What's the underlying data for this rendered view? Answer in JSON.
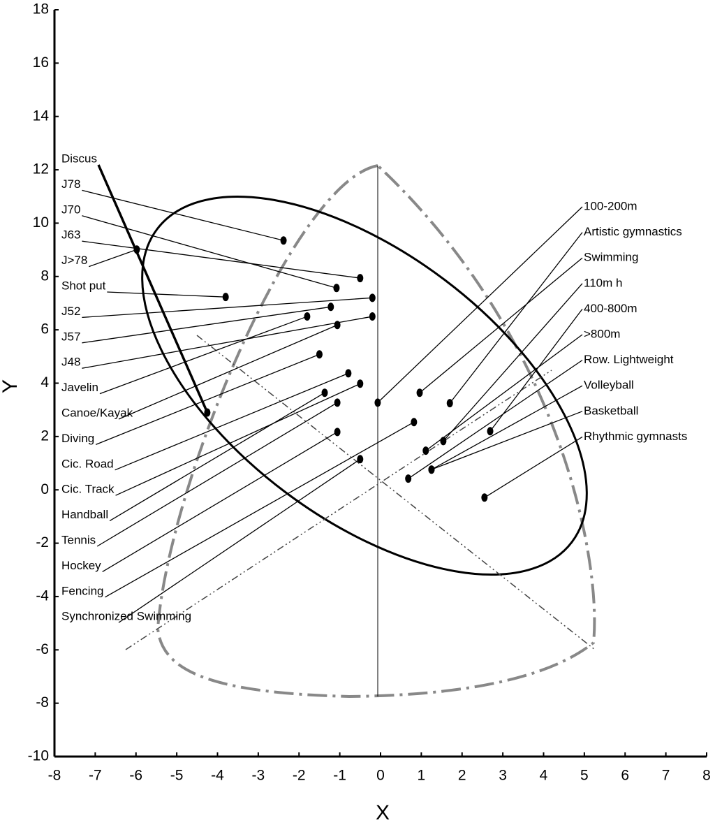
{
  "chart_data": {
    "type": "scatter",
    "x_label": "X",
    "y_label": "Y",
    "xlim": [
      -8,
      8
    ],
    "ylim": [
      -10,
      18
    ],
    "xticks": [
      -8,
      -7,
      -6,
      -5,
      -4,
      -3,
      -2,
      -1,
      0,
      1,
      2,
      3,
      4,
      5,
      6,
      7,
      8
    ],
    "yticks": [
      -10,
      -8,
      -6,
      -4,
      -2,
      0,
      2,
      4,
      6,
      8,
      10,
      12,
      14,
      16,
      18
    ],
    "color": "#000000",
    "groups": [
      {
        "labels": [
          "Discus",
          "J78",
          "J70",
          "J63",
          "J>78",
          "Shot put",
          "J52",
          "J57",
          "J48",
          "Javelin",
          "Canoe/Kayak",
          "Diving",
          "Cic. Road",
          "Cic. Track",
          "Handball",
          "Tennis",
          "Hockey",
          "Fencing",
          "Synchronized Swimming"
        ],
        "x": [
          -4.25,
          -2.38,
          -1.08,
          -0.5,
          -5.98,
          -3.8,
          -0.2,
          -1.22,
          -0.2,
          -1.8,
          -1.06,
          -1.5,
          -0.79,
          -0.5,
          -1.37,
          -1.06,
          -1.06,
          0.82,
          -0.5
        ],
        "values": [
          2.9,
          9.35,
          7.57,
          7.94,
          9.01,
          7.23,
          7.2,
          6.86,
          6.5,
          6.5,
          6.18,
          5.08,
          4.37,
          3.98,
          3.64,
          3.27,
          2.17,
          2.54,
          1.15
        ]
      },
      {
        "labels": [
          "100-200m",
          "Artistic gymnastics",
          "Swimming",
          "110m h",
          "400-800m",
          ">800m",
          "Row. Lightweight",
          "Volleyball",
          "Basketball",
          "Rhythmic gymnasts"
        ],
        "x": [
          -0.07,
          1.7,
          0.96,
          1.54,
          2.69,
          1.11,
          0.68,
          1.25,
          1.25,
          2.55
        ],
        "values": [
          3.27,
          3.25,
          3.64,
          1.83,
          2.2,
          1.47,
          0.42,
          0.76,
          0.76,
          -0.29
        ]
      }
    ]
  }
}
